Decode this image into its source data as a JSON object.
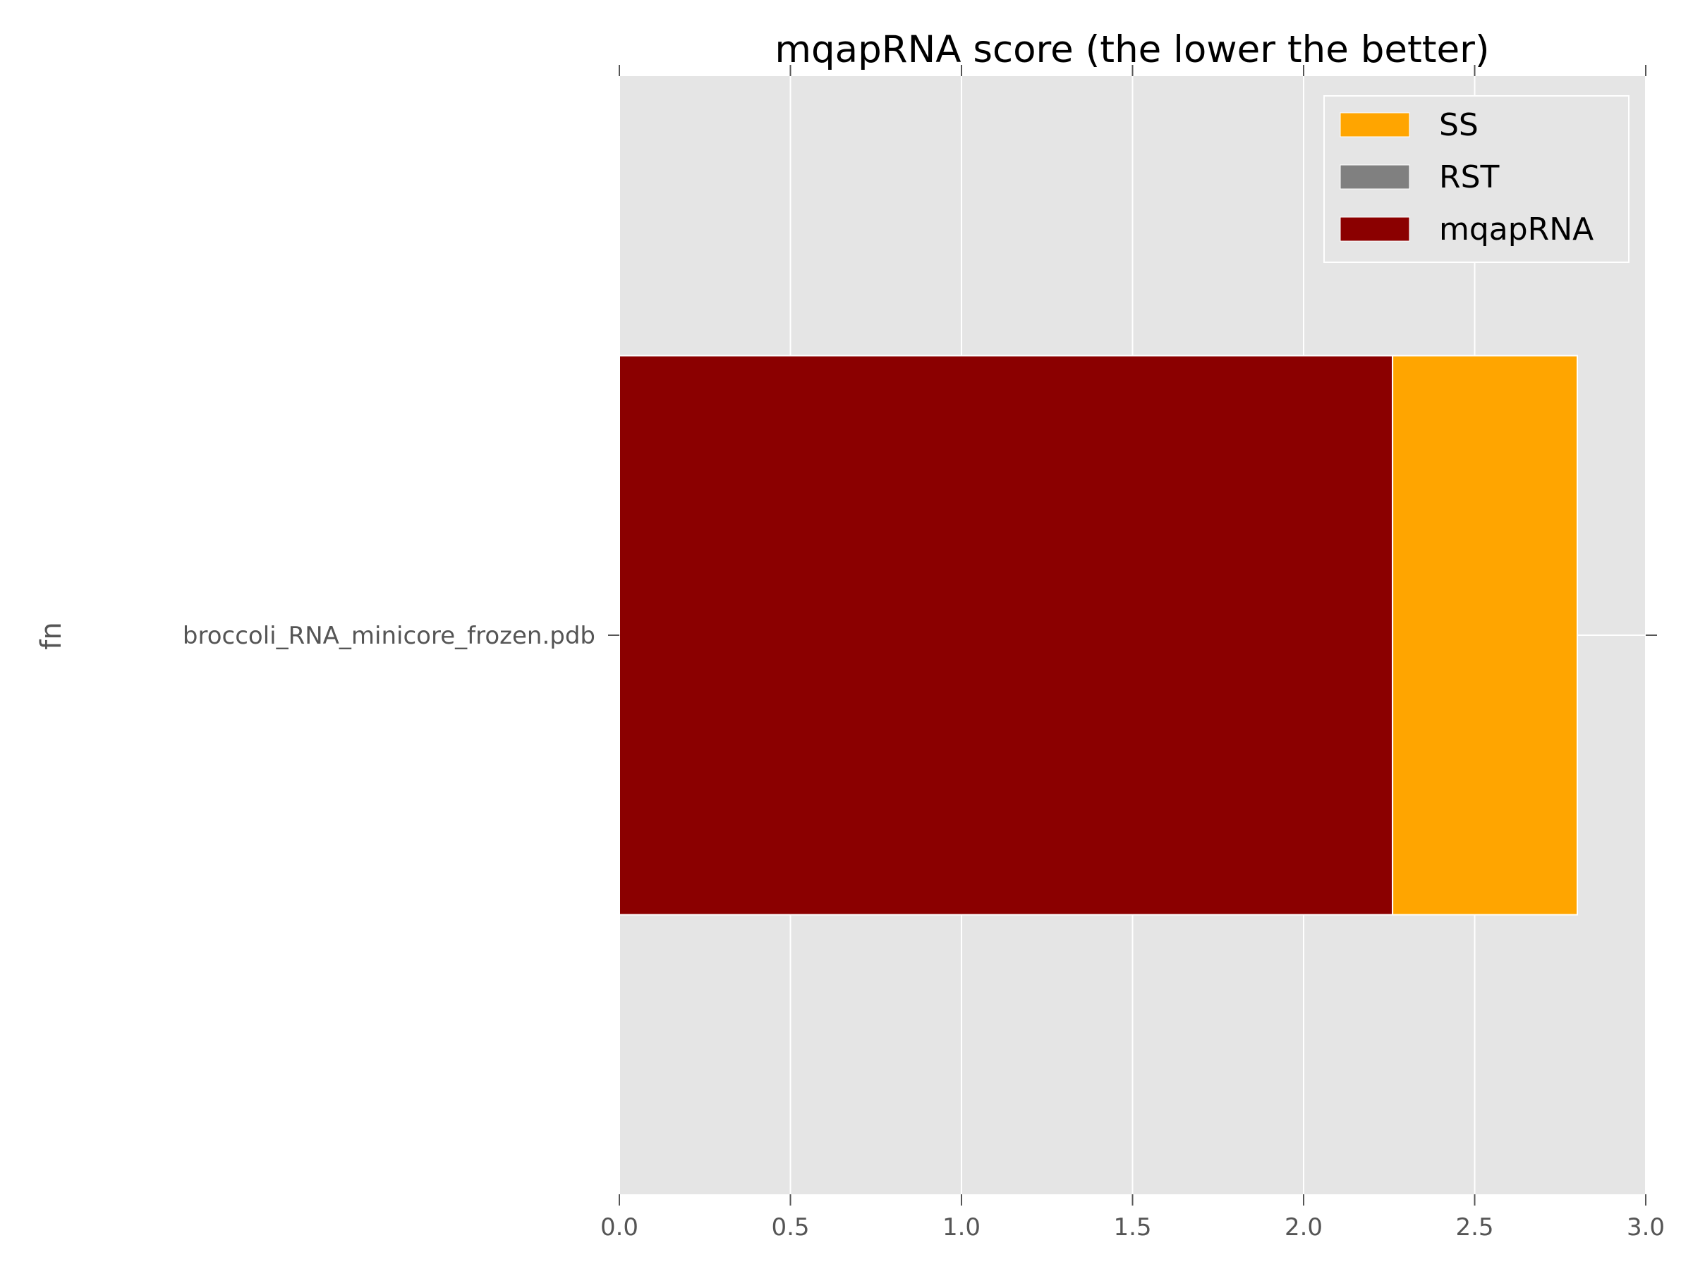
{
  "chart_data": {
    "type": "bar",
    "orientation": "horizontal",
    "stacked": true,
    "title": "mqapRNA score (the lower the better)",
    "xlabel": "",
    "ylabel": "fn",
    "categories": [
      "broccoli_RNA_minicore_frozen.pdb"
    ],
    "xlim": [
      0,
      3.0
    ],
    "xticks": [
      0.0,
      0.5,
      1.0,
      1.5,
      2.0,
      2.5,
      3.0
    ],
    "xtick_labels": [
      "0.0",
      "0.5",
      "1.0",
      "1.5",
      "2.0",
      "2.5",
      "3.0"
    ],
    "grid": true,
    "legend_position": "top-right",
    "series": [
      {
        "name": "mqapRNA",
        "color": "#8b0000",
        "values": [
          2.26
        ]
      },
      {
        "name": "RST",
        "color": "#808080",
        "values": [
          0.0
        ]
      },
      {
        "name": "SS",
        "color": "#ffa500",
        "values": [
          0.54
        ]
      }
    ],
    "legend_order": [
      "SS",
      "RST",
      "mqapRNA"
    ]
  }
}
